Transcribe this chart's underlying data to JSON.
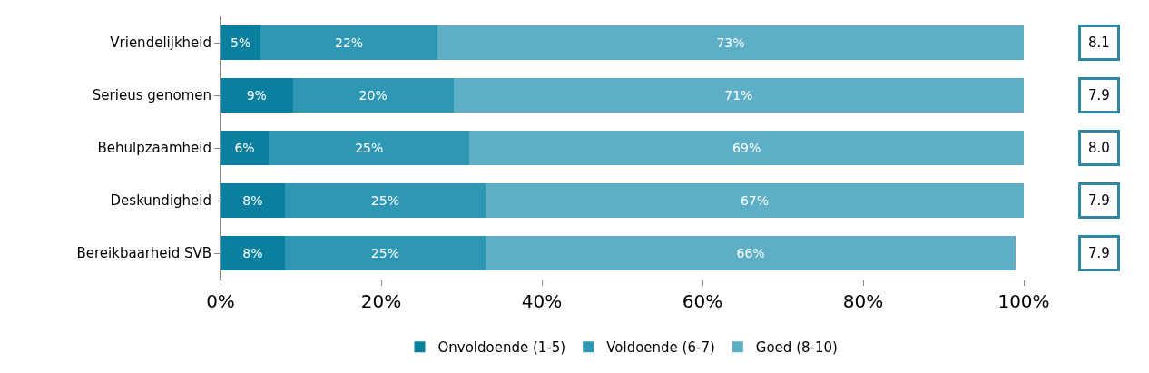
{
  "chart_data": {
    "type": "bar",
    "orientation": "horizontal",
    "stacked": true,
    "categories": [
      "Vriendelijkheid",
      "Serieus genomen",
      "Behulpzaamheid",
      "Deskundigheid",
      "Bereikbaarheid SVB"
    ],
    "series": [
      {
        "name": "Onvoldoende (1-5)",
        "color": "#0a809e",
        "values": [
          5,
          9,
          6,
          8,
          8
        ],
        "value_labels": [
          "5%",
          "9%",
          "6%",
          "8%",
          "8%"
        ]
      },
      {
        "name": "Voldoende (6-7)",
        "color": "#2e98b4",
        "values": [
          22,
          20,
          25,
          25,
          25
        ],
        "value_labels": [
          "22%",
          "20%",
          "25%",
          "25%",
          "25%"
        ]
      },
      {
        "name": "Goed (8-10)",
        "color": "#5eafc6",
        "values": [
          73,
          71,
          69,
          67,
          66
        ],
        "value_labels": [
          "73%",
          "71%",
          "69%",
          "67%",
          "66%"
        ]
      }
    ],
    "xlim": [
      0,
      100
    ],
    "xticks": [
      {
        "value": 0,
        "label": "0%"
      },
      {
        "value": 20,
        "label": "20%"
      },
      {
        "value": 40,
        "label": "40%"
      },
      {
        "value": 60,
        "label": "60%"
      },
      {
        "value": 80,
        "label": "80%"
      },
      {
        "value": 100,
        "label": "100%"
      }
    ],
    "annotations": [
      "8.1",
      "7.9",
      "8.0",
      "7.9",
      "7.9"
    ],
    "legend": "bottom"
  }
}
